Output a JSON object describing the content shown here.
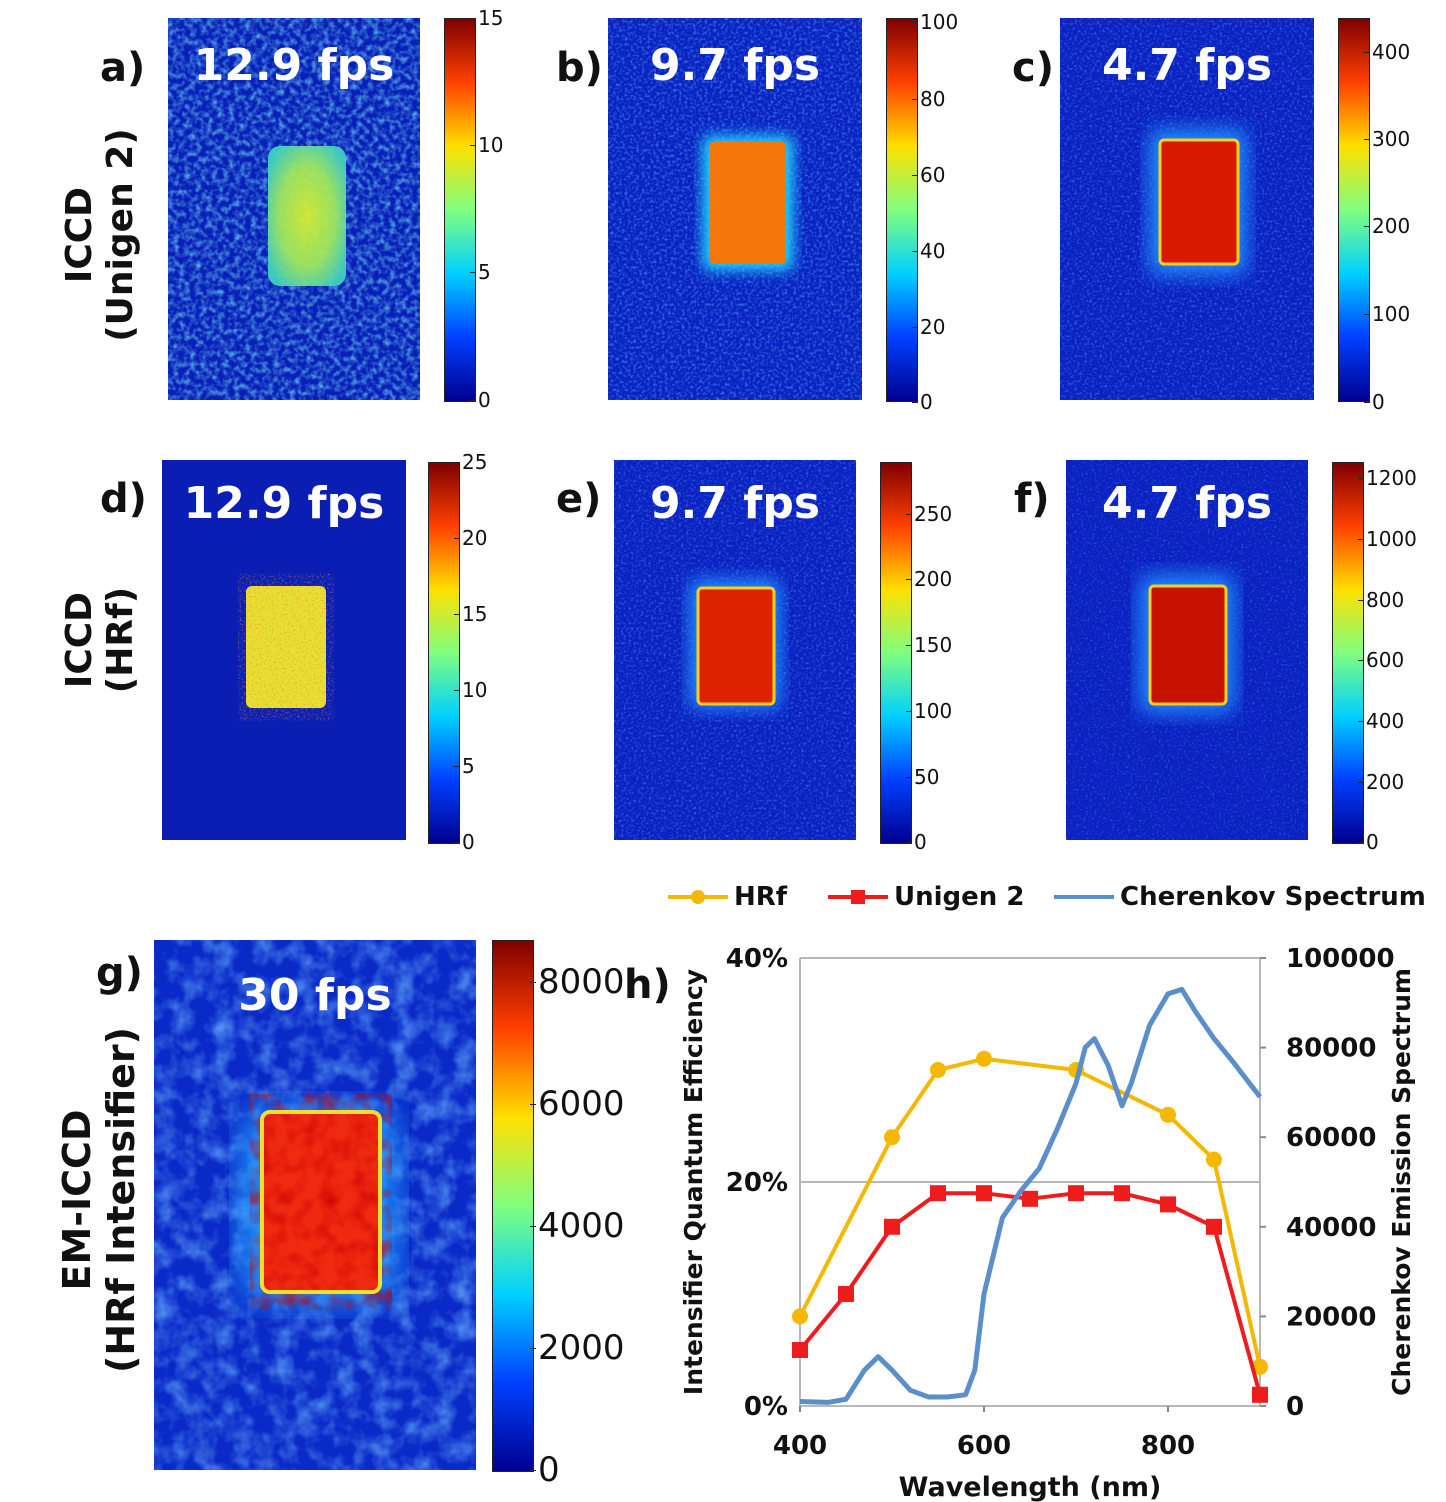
{
  "rows": [
    {
      "label_line1": "ICCD",
      "label_line2": "(Unigen 2)"
    },
    {
      "label_line1": "ICCD",
      "label_line2": "(HRf)"
    },
    {
      "label_line1": "EM-ICCD",
      "label_line2": "(HRf Intensifier)"
    }
  ],
  "panels": [
    {
      "letter": "a)",
      "fps": "12.9 fps",
      "ticks": [
        "15",
        "10",
        "5",
        "0"
      ],
      "max": 15
    },
    {
      "letter": "b)",
      "fps": "9.7 fps",
      "ticks": [
        "100",
        "80",
        "60",
        "40",
        "20",
        "0"
      ],
      "max": 100
    },
    {
      "letter": "c)",
      "fps": "4.7 fps",
      "ticks": [
        "400",
        "300",
        "200",
        "100",
        "0"
      ],
      "max": 440
    },
    {
      "letter": "d)",
      "fps": "12.9 fps",
      "ticks": [
        "25",
        "20",
        "15",
        "10",
        "5",
        "0"
      ],
      "max": 25
    },
    {
      "letter": "e)",
      "fps": "9.7 fps",
      "ticks": [
        "250",
        "200",
        "150",
        "100",
        "50",
        "0"
      ],
      "max": 290
    },
    {
      "letter": "f)",
      "fps": "4.7 fps",
      "ticks": [
        "1200",
        "1000",
        "800",
        "600",
        "400",
        "200",
        "0"
      ],
      "max": 1260
    },
    {
      "letter": "g)",
      "fps": "30 fps",
      "ticks": [
        "8000",
        "6000",
        "4000",
        "2000",
        "0"
      ],
      "max": 8700
    }
  ],
  "chart_letter": "h)",
  "chart_data": {
    "type": "line",
    "xlabel": "Wavelength (nm)",
    "ylabel_left": "Intensifier Quantum Efficiency",
    "ylabel_right": "Cherenkov Emission Spectrum",
    "xlim": [
      400,
      900
    ],
    "x_ticks": [
      "400",
      "600",
      "800"
    ],
    "ylim_left": [
      0,
      40
    ],
    "y_ticks_left": [
      "0%",
      "20%",
      "40%"
    ],
    "ylim_right": [
      0,
      100000
    ],
    "y_ticks_right": [
      "0",
      "20000",
      "40000",
      "60000",
      "80000",
      "100000"
    ],
    "grid": "horizontal",
    "legend": "top",
    "series": [
      {
        "name": "HRf",
        "axis": "left",
        "marker": "circle",
        "color": "#f5b800",
        "x": [
          400,
          500,
          550,
          600,
          700,
          800,
          850,
          900
        ],
        "y": [
          8,
          24,
          30,
          31,
          30,
          26,
          22,
          3.5
        ]
      },
      {
        "name": "Unigen 2",
        "axis": "left",
        "marker": "square",
        "color": "#ee1c1c",
        "x": [
          400,
          450,
          500,
          550,
          600,
          650,
          700,
          750,
          800,
          850,
          900
        ],
        "y": [
          5,
          10,
          16,
          19,
          19,
          18.5,
          19,
          19,
          18,
          16,
          1
        ]
      },
      {
        "name": "Cherenkov Spectrum",
        "axis": "right",
        "marker": "none",
        "color": "#5b8fc9",
        "x": [
          400,
          430,
          450,
          470,
          485,
          500,
          520,
          540,
          560,
          580,
          590,
          600,
          620,
          640,
          660,
          680,
          700,
          710,
          720,
          735,
          750,
          760,
          780,
          800,
          815,
          830,
          850,
          870,
          900
        ],
        "y": [
          1000,
          800,
          1500,
          8000,
          11000,
          8000,
          3500,
          2000,
          2000,
          2500,
          8000,
          25000,
          42000,
          48000,
          53000,
          62000,
          72000,
          80000,
          82000,
          76000,
          67000,
          72000,
          85000,
          92000,
          93000,
          88000,
          82000,
          77000,
          69000
        ]
      }
    ]
  },
  "colors": {
    "jet_low": "#00008f",
    "jet_mid": "#00d0ff",
    "jet_high": "#800000"
  }
}
